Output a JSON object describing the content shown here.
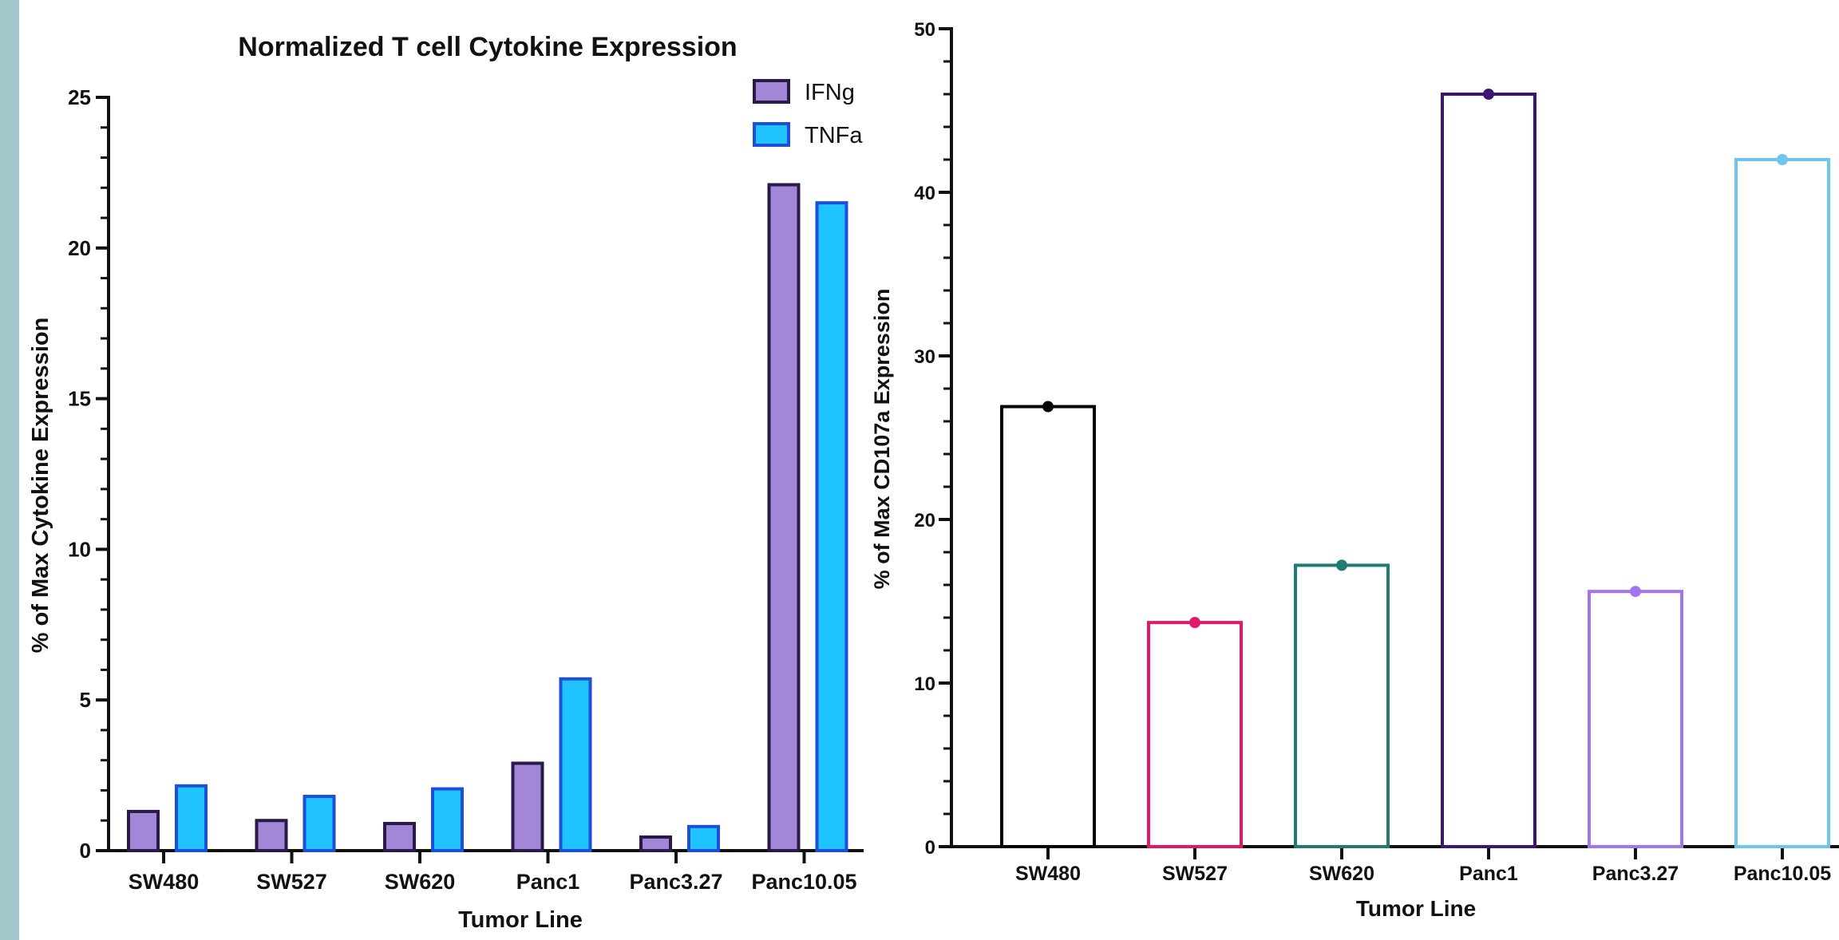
{
  "chart_data": [
    {
      "type": "bar",
      "title": "Normalized T cell Cytokine Expression",
      "xlabel": "Tumor Line",
      "ylabel": "% of Max Cytokine Expression",
      "ylim": [
        0,
        25
      ],
      "y_ticks": [
        "0",
        "5",
        "10",
        "15",
        "20",
        "25"
      ],
      "categories": [
        "SW480",
        "SW527",
        "SW620",
        "Panc1",
        "Panc3.27",
        "Panc10.05"
      ],
      "legend": "top-right",
      "series": [
        {
          "name": "IFNg",
          "values": [
            1.3,
            1.0,
            0.9,
            2.9,
            0.45,
            22.1
          ],
          "fill": "#a187d6",
          "stroke": "#2a1a4a"
        },
        {
          "name": "TNFa",
          "values": [
            2.15,
            1.8,
            2.05,
            5.7,
            0.8,
            21.5
          ],
          "fill": "#1ec3ff",
          "stroke": "#1e4fd8"
        }
      ]
    },
    {
      "type": "bar",
      "title": "",
      "xlabel": "Tumor Line",
      "ylabel": "% of Max CD107a Expression",
      "ylim": [
        0,
        50
      ],
      "y_ticks": [
        "0",
        "10",
        "20",
        "30",
        "40",
        "50"
      ],
      "categories": [
        "SW480",
        "SW527",
        "SW620",
        "Panc1",
        "Panc3.27",
        "Panc10.05"
      ],
      "values": [
        26.9,
        13.7,
        17.2,
        46.0,
        15.6,
        42.0
      ],
      "colors": [
        "#000000",
        "#e0186a",
        "#1f7a78",
        "#3c1672",
        "#a474ee",
        "#6ec6ef"
      ],
      "point_markers": true
    }
  ]
}
